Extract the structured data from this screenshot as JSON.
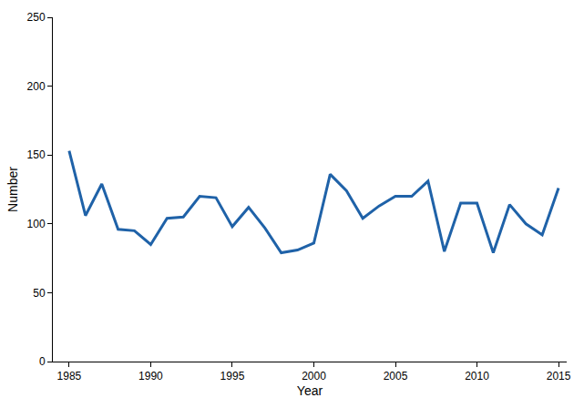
{
  "chart_data": {
    "type": "line",
    "x_label": "Year",
    "y_label": "Number",
    "x": [
      1985,
      1986,
      1987,
      1988,
      1989,
      1990,
      1991,
      1992,
      1993,
      1994,
      1995,
      1996,
      1997,
      1998,
      1999,
      2000,
      2001,
      2002,
      2003,
      2004,
      2005,
      2006,
      2007,
      2008,
      2009,
      2010,
      2011,
      2012,
      2013,
      2014,
      2015
    ],
    "values": [
      153,
      106,
      129,
      96,
      95,
      85,
      104,
      105,
      120,
      119,
      98,
      112,
      97,
      79,
      81,
      86,
      136,
      124,
      104,
      113,
      120,
      120,
      131,
      80,
      115,
      115,
      79,
      114,
      100,
      92,
      126
    ],
    "color": "#1f62a8",
    "xlim": [
      1984,
      2015.5
    ],
    "xticks": [
      1985,
      1990,
      1995,
      2000,
      2005,
      2010,
      2015
    ],
    "ylim": [
      0,
      250
    ],
    "yticks": [
      0,
      50,
      100,
      150,
      200,
      250
    ],
    "grid": false
  }
}
